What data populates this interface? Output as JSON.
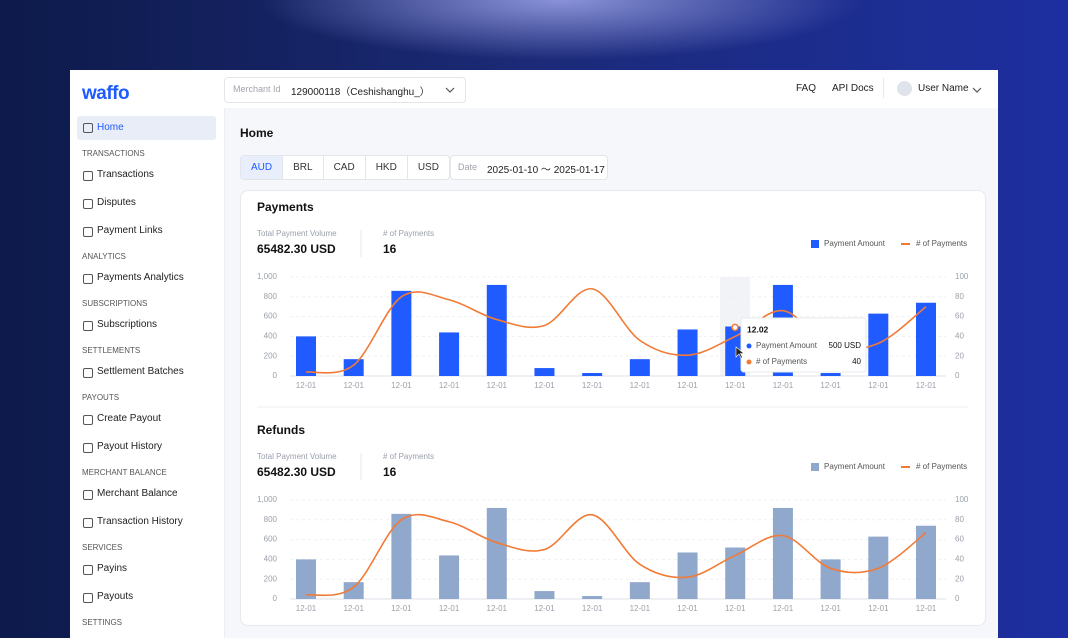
{
  "logo": "waffo",
  "header": {
    "merchant_label": "Merchant Id",
    "merchant_value": "129000118（Ceshishanghu_）",
    "links": [
      "FAQ",
      "API Docs"
    ],
    "user": "User Name"
  },
  "sidebar": {
    "home": "Home",
    "sections": [
      {
        "title": "TRANSACTIONS",
        "items": [
          "Transactions",
          "Disputes",
          "Payment Links"
        ]
      },
      {
        "title": "ANALYTICS",
        "items": [
          "Payments Analytics"
        ]
      },
      {
        "title": "SUBSCRIPTIONS",
        "items": [
          "Subscriptions"
        ]
      },
      {
        "title": "SETTLEMENTS",
        "items": [
          "Settlement Batches"
        ]
      },
      {
        "title": "PAYOUTS",
        "items": [
          "Create Payout",
          "Payout History"
        ]
      },
      {
        "title": "MERCHANT BALANCE",
        "items": [
          "Merchant Balance",
          "Transaction History"
        ]
      },
      {
        "title": "SERVICES",
        "items": [
          "Payins",
          "Payouts"
        ]
      },
      {
        "title": "SETTINGS",
        "items": []
      }
    ]
  },
  "page": {
    "title": "Home",
    "currencies": [
      "AUD",
      "BRL",
      "CAD",
      "HKD",
      "USD"
    ],
    "date_label": "Date",
    "date_range": "2025-01-10 ～ 2025-01-17"
  },
  "chart_data": [
    {
      "type": "bar",
      "title": "Payments",
      "stats": [
        {
          "label": "Total Payment Volume",
          "value": "65482.30 USD"
        },
        {
          "label": "# of Payments",
          "value": "16"
        }
      ],
      "categories": [
        "12-01",
        "12-01",
        "12-01",
        "12-01",
        "12-01",
        "12-01",
        "12-01",
        "12-01",
        "12-01",
        "12-01",
        "12-01",
        "12-01",
        "12-01",
        "12-01"
      ],
      "series": [
        {
          "name": "Payment Amount",
          "color": "#1f5bff",
          "values": [
            400,
            170,
            860,
            440,
            920,
            80,
            30,
            170,
            470,
            500,
            920,
            30,
            630,
            740
          ]
        },
        {
          "name": "# of Payments",
          "color": "#f27a35",
          "type": "line",
          "axis": "y2",
          "values": [
            4,
            11,
            80,
            77,
            57,
            51,
            88,
            36,
            21,
            40,
            66,
            30,
            33,
            70
          ]
        }
      ],
      "ylim": [
        0,
        1000
      ],
      "yticks": [
        0,
        200,
        400,
        600,
        800,
        {
          "value": 1000,
          "label": "1,000"
        }
      ],
      "y2lim": [
        0,
        100
      ],
      "y2ticks": [
        0,
        20,
        40,
        60,
        80,
        100
      ],
      "grid": true,
      "legend": "top-right",
      "tooltip": {
        "title": "12.02",
        "rows": [
          {
            "label": "Payment Amount",
            "value": "500 USD"
          },
          {
            "label": "# of Payments",
            "value": "40"
          }
        ]
      }
    },
    {
      "type": "bar",
      "title": "Refunds",
      "stats": [
        {
          "label": "Total Payment Volume",
          "value": "65482.30 USD"
        },
        {
          "label": "# of Payments",
          "value": "16"
        }
      ],
      "categories": [
        "12-01",
        "12-01",
        "12-01",
        "12-01",
        "12-01",
        "12-01",
        "12-01",
        "12-01",
        "12-01",
        "12-01",
        "12-01",
        "12-01",
        "12-01",
        "12-01"
      ],
      "series": [
        {
          "name": "Payment Amount",
          "color": "#8fa8cc",
          "values": [
            400,
            170,
            860,
            440,
            920,
            80,
            30,
            170,
            470,
            520,
            920,
            400,
            630,
            740
          ]
        },
        {
          "name": "# of Payments",
          "color": "#f27a35",
          "type": "line",
          "axis": "y2",
          "values": [
            4,
            12,
            80,
            78,
            57,
            50,
            85,
            35,
            22,
            44,
            64,
            31,
            31,
            67
          ]
        }
      ],
      "ylim": [
        0,
        1000
      ],
      "yticks": [
        0,
        200,
        400,
        600,
        800,
        {
          "value": 1000,
          "label": "1,000"
        }
      ],
      "y2lim": [
        0,
        100
      ],
      "y2ticks": [
        0,
        20,
        40,
        60,
        80,
        100
      ],
      "grid": true,
      "legend": "top-right"
    }
  ]
}
